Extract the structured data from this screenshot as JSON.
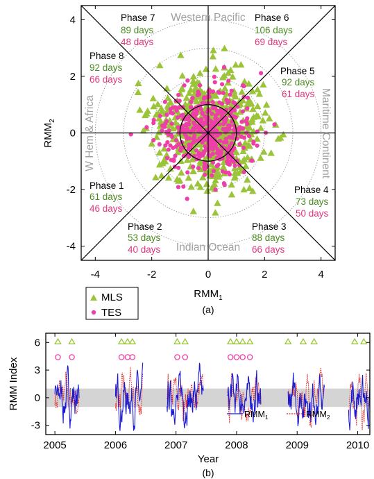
{
  "colors": {
    "mls": "#9bc43a",
    "tes": "#ee3fa8",
    "grey": "#a0a0a0",
    "rmm1": "#1a1ad6",
    "rmm2": "#e02020",
    "band": "#d4d4d4",
    "phase_green": "#4a8a20",
    "phase_pink": "#e0357e"
  },
  "chart_data": [
    {
      "type": "scatter",
      "panel_label": "(a)",
      "xlabel": "RMM",
      "xlabel_sub": "1",
      "ylabel": "RMM",
      "ylabel_sub": "2",
      "xlim": [
        -4.5,
        4.5
      ],
      "ylim": [
        -4.5,
        4.5
      ],
      "xticks": [
        -4,
        -2,
        0,
        2,
        4
      ],
      "yticks": [
        4,
        2,
        0,
        -2,
        -4
      ],
      "regions": {
        "top": "Western Pacific",
        "bottom": "Indian Ocean",
        "left": "W Hem & Africa",
        "right": "Maritime Continent"
      },
      "phases": [
        {
          "name": "Phase 1",
          "mls": "61 days",
          "tes": "46 days"
        },
        {
          "name": "Phase 2",
          "mls": "53 days",
          "tes": "40 days"
        },
        {
          "name": "Phase 3",
          "mls": "88 days",
          "tes": "66 days"
        },
        {
          "name": "Phase 4",
          "mls": "73 days",
          "tes": "50 days"
        },
        {
          "name": "Phase 5",
          "mls": "92 days",
          "tes": "61 days"
        },
        {
          "name": "Phase 6",
          "mls": "106 days",
          "tes": "69 days"
        },
        {
          "name": "Phase 7",
          "mls": "89 days",
          "tes": "48 days"
        },
        {
          "name": "Phase 8",
          "mls": "92 days",
          "tes": "66 days"
        }
      ],
      "series": [
        {
          "name": "MLS",
          "marker": "triangle",
          "counts": {
            "phase1": 61,
            "phase2": 53,
            "phase3": 88,
            "phase4": 73,
            "phase5": 92,
            "phase6": 106,
            "phase7": 89,
            "phase8": 92
          }
        },
        {
          "name": "TES",
          "marker": "circle",
          "counts": {
            "phase1": 46,
            "phase2": 40,
            "phase3": 66,
            "phase4": 50,
            "phase5": 61,
            "phase6": 69,
            "phase7": 48,
            "phase8": 66
          }
        }
      ],
      "reference_circles": [
        1,
        2,
        3,
        4
      ],
      "legend": [
        {
          "label": "MLS",
          "marker": "triangle"
        },
        {
          "label": "TES",
          "marker": "circle"
        }
      ],
      "legend_position": "bottom-left outside"
    },
    {
      "type": "line",
      "panel_label": "(b)",
      "xlabel": "Year",
      "ylabel": "RMM Index",
      "xlim": [
        2004.85,
        2010.2
      ],
      "ylim": [
        -4,
        7
      ],
      "xticks": [
        2005,
        2006,
        2007,
        2008,
        2009,
        2010
      ],
      "yticks": [
        6,
        3,
        0,
        -3
      ],
      "band": [
        -1,
        1
      ],
      "series": [
        {
          "name": "RMM",
          "name_sub": "1"
        },
        {
          "name": "RMM",
          "name_sub": "2"
        }
      ],
      "segments": [
        [
          2005.0,
          2005.4
        ],
        [
          2006.0,
          2006.45
        ],
        [
          2006.85,
          2007.45
        ],
        [
          2007.85,
          2008.4
        ],
        [
          2008.85,
          2009.45
        ],
        [
          2009.85,
          2010.25
        ]
      ],
      "mls_events": [
        2005.05,
        2005.28,
        2006.1,
        2006.2,
        2006.28,
        2007.02,
        2007.15,
        2007.9,
        2008.0,
        2008.1,
        2008.22,
        2008.85,
        2009.1,
        2009.28,
        2009.95,
        2010.1
      ],
      "tes_events": [
        2005.05,
        2005.28,
        2006.1,
        2006.2,
        2006.28,
        2007.02,
        2007.15,
        2007.9,
        2008.0,
        2008.1,
        2008.22
      ],
      "legend_position": "bottom-right"
    }
  ]
}
